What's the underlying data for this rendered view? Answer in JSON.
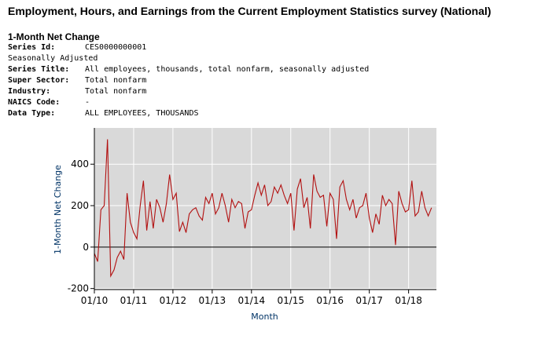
{
  "page": {
    "title": "Employment, Hours, and Earnings from the Current Employment Statistics survey (National)",
    "section_title": "1-Month Net Change"
  },
  "series_info": {
    "series_id_label": "Series Id:",
    "series_id_value": "CES0000000001",
    "seasonal_note": "Seasonally Adjusted",
    "series_title_label": "Series Title:",
    "series_title_value": "All employees, thousands, total nonfarm, seasonally adjusted",
    "super_sector_label": "Super Sector:",
    "super_sector_value": "Total nonfarm",
    "industry_label": "Industry:",
    "industry_value": "Total nonfarm",
    "naics_label": "NAICS Code:",
    "naics_value": "-",
    "data_type_label": "Data Type:",
    "data_type_value": "ALL EMPLOYEES, THOUSANDS"
  },
  "colors": {
    "plot_background": "#d9d9d9",
    "gridline": "#ffffff",
    "series_line": "#b21010",
    "axis_label": "#003366"
  },
  "chart_data": {
    "type": "line",
    "title": "",
    "xlabel": "Month",
    "ylabel": "1-Month Net Change",
    "ylim": [
      -205,
      575
    ],
    "yticks": [
      -200,
      0,
      200,
      400
    ],
    "ytick_labels": [
      "-200",
      "0",
      "200",
      "400"
    ],
    "xlim": [
      0,
      104.5
    ],
    "xtick_positions": [
      0,
      12,
      24,
      36,
      48,
      60,
      72,
      84,
      96
    ],
    "xtick_labels": [
      "01/10",
      "01/11",
      "01/12",
      "01/13",
      "01/14",
      "01/15",
      "01/16",
      "01/17",
      "01/18"
    ],
    "grid": true,
    "series": [
      {
        "name": "1-Month Net Change",
        "start": "01/10",
        "frequency": "monthly",
        "values": [
          -30,
          -70,
          180,
          200,
          520,
          -140,
          -110,
          -50,
          -20,
          -60,
          260,
          120,
          70,
          40,
          200,
          320,
          80,
          220,
          90,
          230,
          190,
          120,
          210,
          350,
          230,
          260,
          75,
          120,
          70,
          160,
          180,
          190,
          150,
          130,
          240,
          210,
          260,
          160,
          190,
          260,
          200,
          120,
          230,
          190,
          220,
          210,
          90,
          170,
          180,
          250,
          310,
          250,
          300,
          200,
          220,
          290,
          260,
          300,
          250,
          210,
          260,
          80,
          280,
          330,
          190,
          240,
          90,
          350,
          270,
          240,
          250,
          100,
          260,
          230,
          40,
          290,
          320,
          230,
          180,
          230,
          140,
          190,
          200,
          260,
          140,
          70,
          160,
          110,
          250,
          200,
          230,
          210,
          10,
          270,
          210,
          170,
          180,
          320,
          150,
          170,
          270,
          190,
          150,
          190
        ]
      }
    ]
  }
}
